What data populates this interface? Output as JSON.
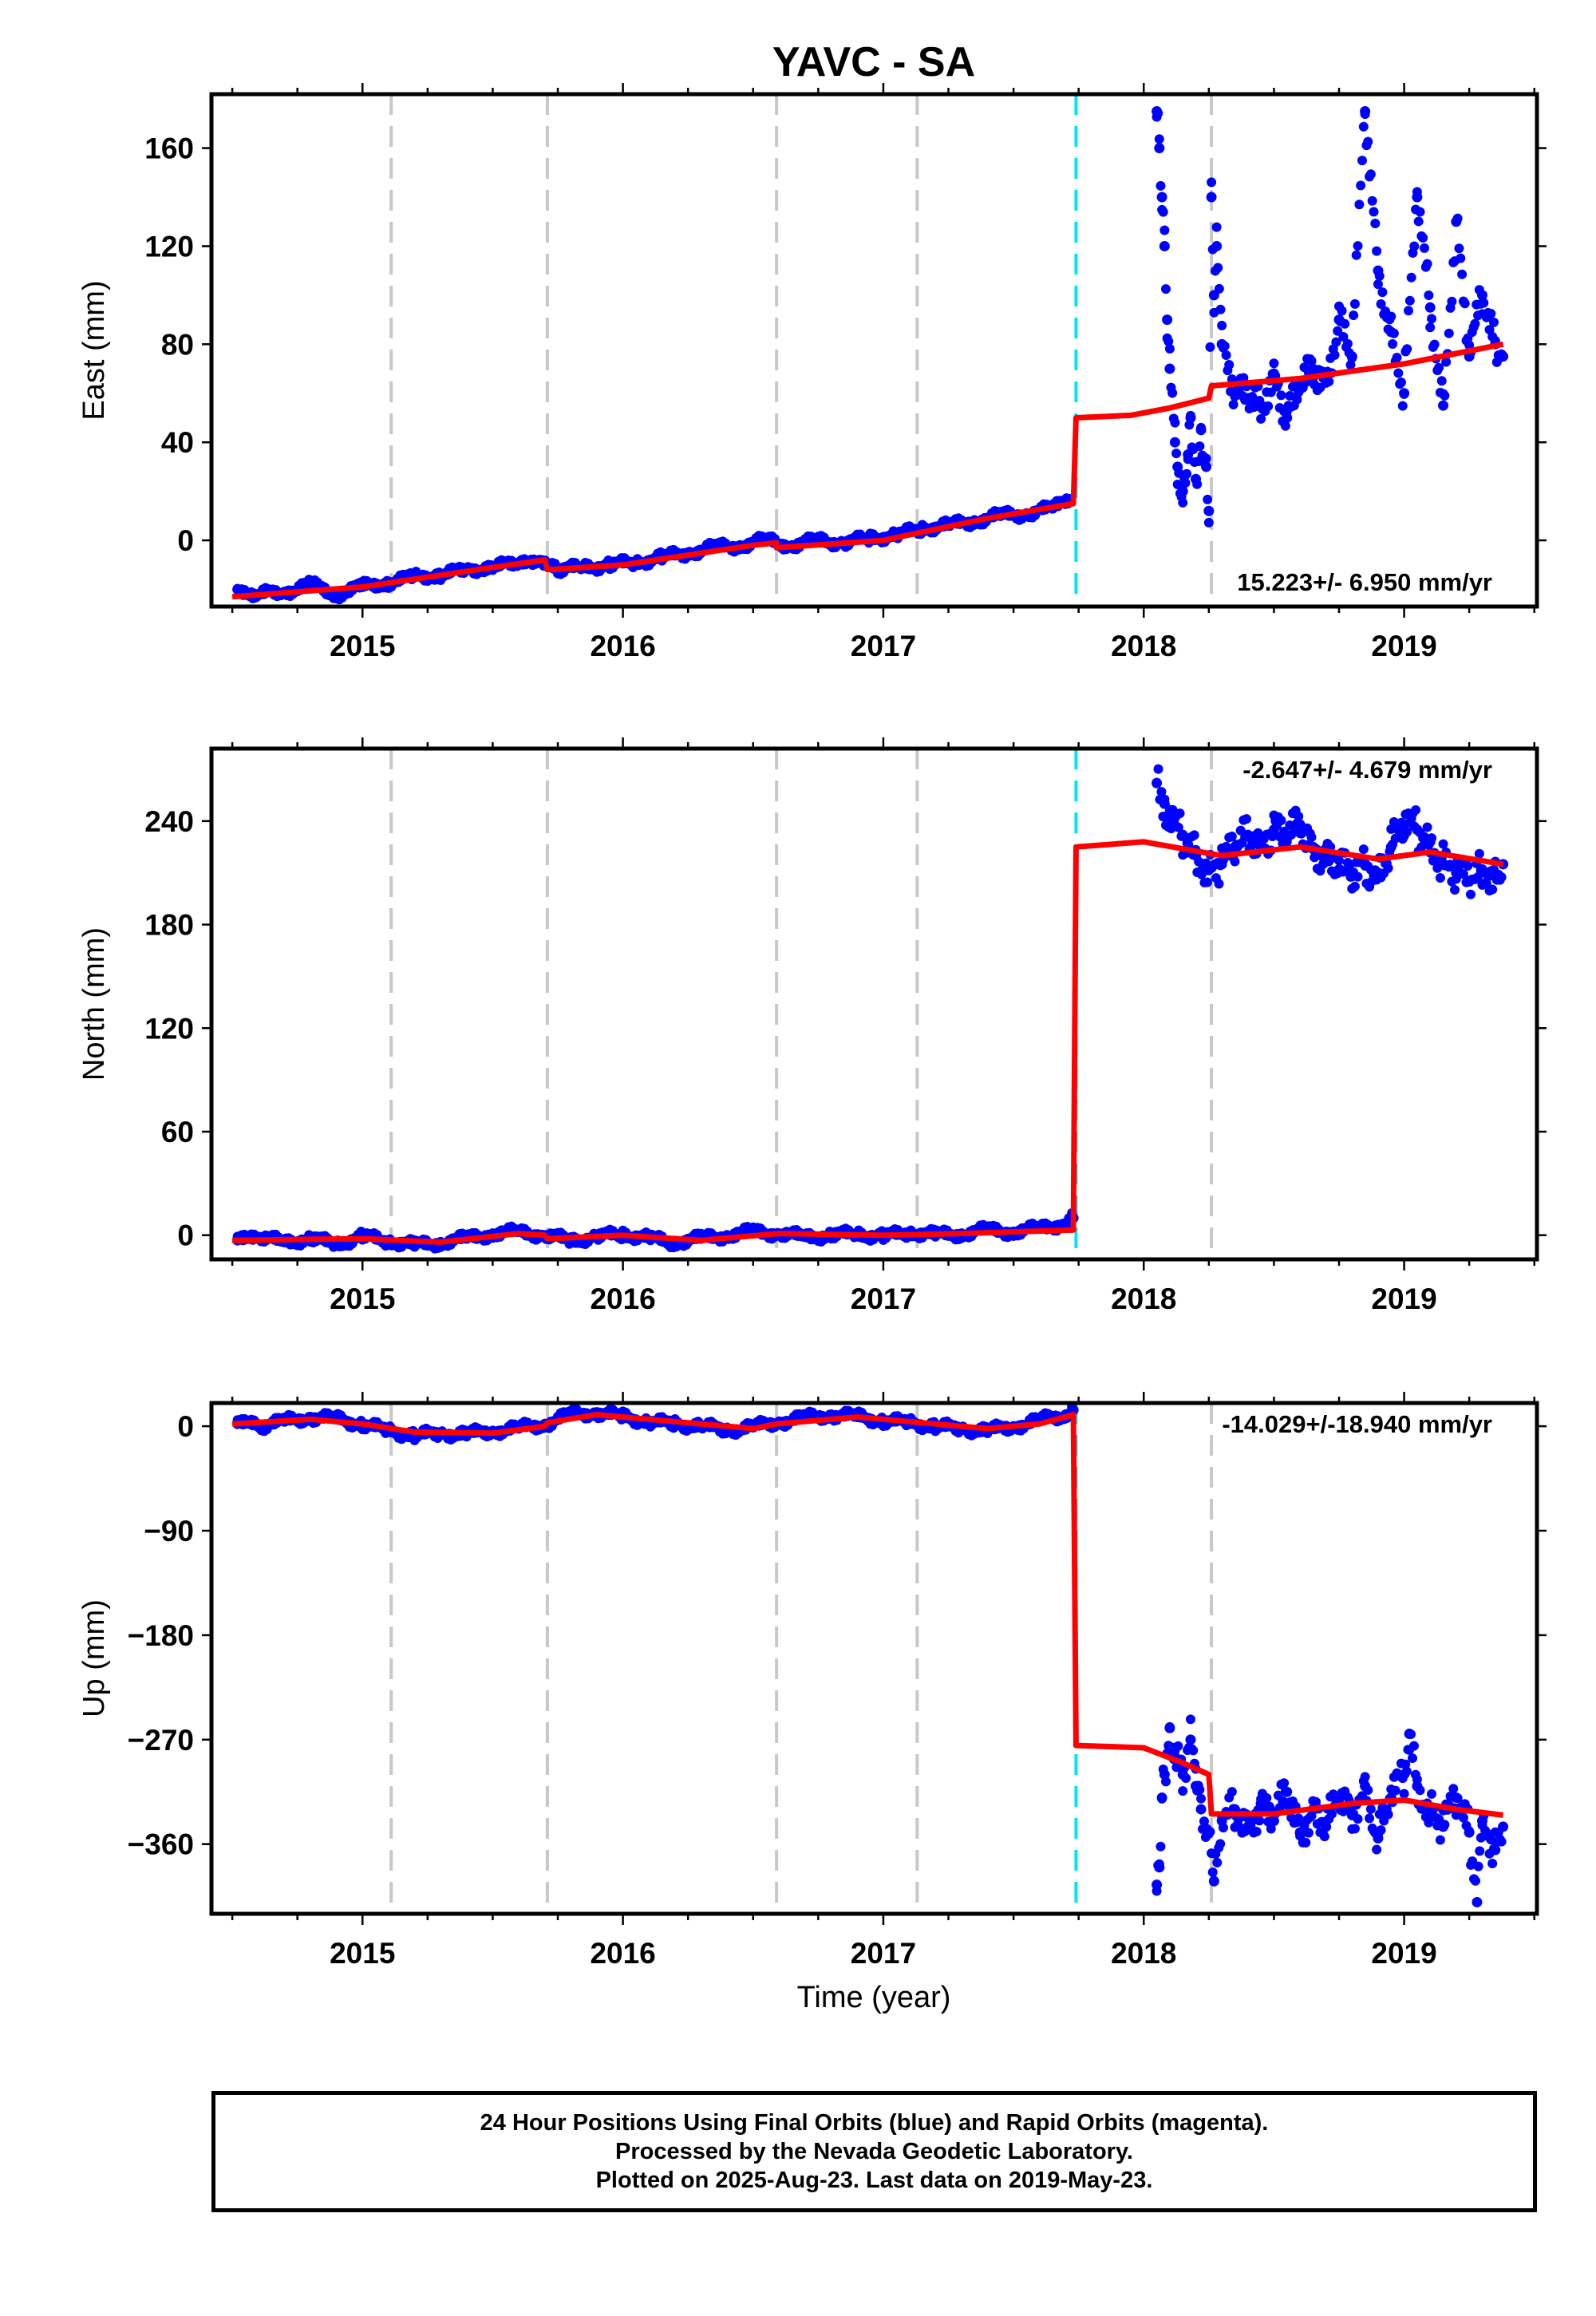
{
  "title": "YAVC - SA",
  "xlabel": "Time (year)",
  "colors": {
    "points": "#0000ff",
    "model": "#ff0000",
    "event_grey": "#c8c8c8",
    "event_cyan": "#00e5ee"
  },
  "footer": {
    "line1": "24 Hour Positions Using Final Orbits (blue) and Rapid Orbits (magenta).",
    "line2": "Processed by the Nevada Geodetic Laboratory.",
    "line3": "Plotted on 2025-Aug-23. Last data on 2019-May-23."
  },
  "chart_data": [
    {
      "type": "scatter",
      "panel": "east",
      "ylabel": "East (mm)",
      "xlim": [
        2014.42,
        2019.51
      ],
      "ylim": [
        -27,
        182
      ],
      "yticks": [
        0,
        40,
        80,
        120,
        160
      ],
      "xticks": [
        2015,
        2016,
        2017,
        2018,
        2019
      ],
      "rate_text": "15.223+/- 6.950 mm/yr",
      "event_lines_grey": [
        2015.11,
        2015.71,
        2016.59,
        2017.13,
        2018.26
      ],
      "event_lines_cyan": [
        2017.74
      ],
      "model": [
        [
          2014.5,
          -23
        ],
        [
          2015.0,
          -19
        ],
        [
          2015.5,
          -11
        ],
        [
          2015.7,
          -8
        ],
        [
          2015.71,
          -12
        ],
        [
          2016.0,
          -10
        ],
        [
          2016.5,
          -2
        ],
        [
          2016.59,
          -1
        ],
        [
          2016.59,
          -3
        ],
        [
          2017.0,
          0
        ],
        [
          2017.4,
          9
        ],
        [
          2017.73,
          15
        ],
        [
          2017.74,
          50
        ],
        [
          2017.95,
          51
        ],
        [
          2018.1,
          54
        ],
        [
          2018.25,
          58
        ],
        [
          2018.26,
          63
        ],
        [
          2018.6,
          66
        ],
        [
          2019.0,
          72
        ],
        [
          2019.38,
          80
        ]
      ],
      "points": [
        [
          2014.52,
          -20
        ],
        [
          2014.6,
          -22
        ],
        [
          2014.7,
          -21
        ],
        [
          2014.8,
          -18
        ],
        [
          2014.9,
          -22
        ],
        [
          2015.0,
          -19
        ],
        [
          2015.1,
          -17
        ],
        [
          2015.2,
          -15
        ],
        [
          2015.3,
          -14
        ],
        [
          2015.4,
          -12
        ],
        [
          2015.5,
          -11
        ],
        [
          2015.6,
          -9
        ],
        [
          2015.68,
          -8
        ],
        [
          2015.75,
          -12
        ],
        [
          2015.85,
          -11
        ],
        [
          2015.95,
          -10
        ],
        [
          2016.05,
          -9
        ],
        [
          2016.15,
          -7
        ],
        [
          2016.25,
          -5
        ],
        [
          2016.35,
          -3
        ],
        [
          2016.45,
          -2
        ],
        [
          2016.55,
          0
        ],
        [
          2016.65,
          -2
        ],
        [
          2016.75,
          0
        ],
        [
          2016.85,
          -1
        ],
        [
          2016.95,
          1
        ],
        [
          2017.05,
          2
        ],
        [
          2017.15,
          5
        ],
        [
          2017.25,
          6
        ],
        [
          2017.35,
          8
        ],
        [
          2017.45,
          10
        ],
        [
          2017.55,
          11
        ],
        [
          2017.65,
          13
        ],
        [
          2017.72,
          16
        ],
        [
          2018.05,
          175
        ],
        [
          2018.06,
          160
        ],
        [
          2018.07,
          140
        ],
        [
          2018.08,
          120
        ],
        [
          2018.09,
          90
        ],
        [
          2018.1,
          70
        ],
        [
          2018.12,
          40
        ],
        [
          2018.13,
          30
        ],
        [
          2018.15,
          20
        ],
        [
          2018.17,
          35
        ],
        [
          2018.18,
          50
        ],
        [
          2018.2,
          25
        ],
        [
          2018.22,
          45
        ],
        [
          2018.24,
          30
        ],
        [
          2018.25,
          12
        ],
        [
          2018.26,
          140
        ],
        [
          2018.27,
          100
        ],
        [
          2018.28,
          120
        ],
        [
          2018.3,
          80
        ],
        [
          2018.35,
          60
        ],
        [
          2018.4,
          58
        ],
        [
          2018.45,
          55
        ],
        [
          2018.5,
          68
        ],
        [
          2018.55,
          50
        ],
        [
          2018.6,
          62
        ],
        [
          2018.65,
          70
        ],
        [
          2018.7,
          65
        ],
        [
          2018.75,
          90
        ],
        [
          2018.8,
          75
        ],
        [
          2018.85,
          175
        ],
        [
          2018.9,
          110
        ],
        [
          2018.95,
          85
        ],
        [
          2019.0,
          60
        ],
        [
          2019.05,
          140
        ],
        [
          2019.1,
          95
        ],
        [
          2019.15,
          55
        ],
        [
          2019.2,
          130
        ],
        [
          2019.25,
          75
        ],
        [
          2019.3,
          100
        ],
        [
          2019.35,
          80
        ],
        [
          2019.38,
          75
        ]
      ]
    },
    {
      "type": "scatter",
      "panel": "north",
      "ylabel": "North (mm)",
      "xlim": [
        2014.42,
        2019.51
      ],
      "ylim": [
        -14,
        282
      ],
      "yticks": [
        0,
        60,
        120,
        180,
        240
      ],
      "xticks": [
        2015,
        2016,
        2017,
        2018,
        2019
      ],
      "rate_text": "-2.647+/- 4.679 mm/yr",
      "event_lines_grey": [
        2015.11,
        2015.71,
        2016.59,
        2017.13,
        2018.26
      ],
      "event_lines_cyan": [
        2017.74
      ],
      "model": [
        [
          2014.5,
          -3
        ],
        [
          2015.0,
          -2
        ],
        [
          2015.3,
          -4
        ],
        [
          2015.6,
          1
        ],
        [
          2015.7,
          0
        ],
        [
          2015.71,
          -2
        ],
        [
          2016.0,
          0
        ],
        [
          2016.3,
          -3
        ],
        [
          2016.6,
          1
        ],
        [
          2017.0,
          0
        ],
        [
          2017.3,
          1
        ],
        [
          2017.73,
          3
        ],
        [
          2017.74,
          225
        ],
        [
          2018.0,
          228
        ],
        [
          2018.3,
          220
        ],
        [
          2018.6,
          225
        ],
        [
          2018.9,
          218
        ],
        [
          2019.1,
          222
        ],
        [
          2019.38,
          215
        ]
      ],
      "points": [
        [
          2014.52,
          -3
        ],
        [
          2014.6,
          -1
        ],
        [
          2014.7,
          -4
        ],
        [
          2014.8,
          -2
        ],
        [
          2014.9,
          -5
        ],
        [
          2015.0,
          -1
        ],
        [
          2015.1,
          -3
        ],
        [
          2015.2,
          -6
        ],
        [
          2015.3,
          -4
        ],
        [
          2015.4,
          -2
        ],
        [
          2015.5,
          1
        ],
        [
          2015.6,
          2
        ],
        [
          2015.7,
          0
        ],
        [
          2015.8,
          -3
        ],
        [
          2015.9,
          -1
        ],
        [
          2016.0,
          1
        ],
        [
          2016.1,
          -2
        ],
        [
          2016.2,
          -4
        ],
        [
          2016.3,
          -2
        ],
        [
          2016.4,
          0
        ],
        [
          2016.5,
          2
        ],
        [
          2016.6,
          1
        ],
        [
          2016.7,
          -1
        ],
        [
          2016.8,
          0
        ],
        [
          2016.9,
          1
        ],
        [
          2017.0,
          -1
        ],
        [
          2017.1,
          2
        ],
        [
          2017.2,
          0
        ],
        [
          2017.3,
          1
        ],
        [
          2017.4,
          3
        ],
        [
          2017.5,
          2
        ],
        [
          2017.6,
          4
        ],
        [
          2017.7,
          7
        ],
        [
          2017.73,
          10
        ],
        [
          2018.05,
          262
        ],
        [
          2018.08,
          250
        ],
        [
          2018.1,
          240
        ],
        [
          2018.15,
          232
        ],
        [
          2018.2,
          220
        ],
        [
          2018.25,
          212
        ],
        [
          2018.3,
          215
        ],
        [
          2018.35,
          225
        ],
        [
          2018.4,
          232
        ],
        [
          2018.45,
          228
        ],
        [
          2018.5,
          235
        ],
        [
          2018.55,
          230
        ],
        [
          2018.6,
          238
        ],
        [
          2018.65,
          225
        ],
        [
          2018.7,
          220
        ],
        [
          2018.75,
          212
        ],
        [
          2018.8,
          208
        ],
        [
          2018.85,
          215
        ],
        [
          2018.9,
          210
        ],
        [
          2018.95,
          225
        ],
        [
          2019.0,
          238
        ],
        [
          2019.05,
          235
        ],
        [
          2019.1,
          228
        ],
        [
          2019.15,
          215
        ],
        [
          2019.2,
          210
        ],
        [
          2019.25,
          205
        ],
        [
          2019.3,
          212
        ],
        [
          2019.35,
          208
        ],
        [
          2019.38,
          215
        ]
      ]
    },
    {
      "type": "scatter",
      "panel": "up",
      "ylabel": "Up (mm)",
      "xlim": [
        2014.42,
        2019.51
      ],
      "ylim": [
        -420,
        20
      ],
      "yticks": [
        0,
        -90,
        -180,
        -270,
        -360
      ],
      "ytick_labels": [
        "0",
        "−90",
        "−180",
        "−270",
        "−360"
      ],
      "xticks": [
        2015,
        2016,
        2017,
        2018,
        2019
      ],
      "rate_text": "-14.029+/-18.940 mm/yr",
      "event_lines_grey": [
        2015.11,
        2015.71,
        2016.59,
        2017.13,
        2018.26
      ],
      "event_lines_cyan": [
        2017.74
      ],
      "model": [
        [
          2014.5,
          2
        ],
        [
          2014.8,
          6
        ],
        [
          2015.0,
          2
        ],
        [
          2015.2,
          -5
        ],
        [
          2015.5,
          -6
        ],
        [
          2015.7,
          0
        ],
        [
          2015.71,
          3
        ],
        [
          2015.9,
          10
        ],
        [
          2016.2,
          4
        ],
        [
          2016.5,
          -2
        ],
        [
          2016.59,
          2
        ],
        [
          2016.9,
          8
        ],
        [
          2017.1,
          4
        ],
        [
          2017.4,
          -2
        ],
        [
          2017.6,
          2
        ],
        [
          2017.73,
          10
        ],
        [
          2017.74,
          -275
        ],
        [
          2018.0,
          -277
        ],
        [
          2018.15,
          -290
        ],
        [
          2018.25,
          -300
        ],
        [
          2018.26,
          -334
        ],
        [
          2018.5,
          -334
        ],
        [
          2018.8,
          -325
        ],
        [
          2019.0,
          -322
        ],
        [
          2019.2,
          -330
        ],
        [
          2019.38,
          -335
        ]
      ],
      "points": [
        [
          2014.52,
          2
        ],
        [
          2014.6,
          0
        ],
        [
          2014.7,
          4
        ],
        [
          2014.8,
          8
        ],
        [
          2014.9,
          6
        ],
        [
          2015.0,
          2
        ],
        [
          2015.1,
          -4
        ],
        [
          2015.2,
          -8
        ],
        [
          2015.3,
          -6
        ],
        [
          2015.4,
          -7
        ],
        [
          2015.5,
          -4
        ],
        [
          2015.6,
          -2
        ],
        [
          2015.7,
          2
        ],
        [
          2015.8,
          10
        ],
        [
          2015.9,
          12
        ],
        [
          2016.0,
          8
        ],
        [
          2016.1,
          4
        ],
        [
          2016.2,
          2
        ],
        [
          2016.3,
          0
        ],
        [
          2016.4,
          -3
        ],
        [
          2016.5,
          -1
        ],
        [
          2016.6,
          4
        ],
        [
          2016.7,
          7
        ],
        [
          2016.8,
          10
        ],
        [
          2016.9,
          8
        ],
        [
          2017.0,
          5
        ],
        [
          2017.1,
          3
        ],
        [
          2017.2,
          0
        ],
        [
          2017.3,
          -2
        ],
        [
          2017.4,
          -4
        ],
        [
          2017.5,
          0
        ],
        [
          2017.6,
          5
        ],
        [
          2017.7,
          10
        ],
        [
          2017.73,
          14
        ],
        [
          2018.05,
          -395
        ],
        [
          2018.06,
          -380
        ],
        [
          2018.07,
          -320
        ],
        [
          2018.08,
          -300
        ],
        [
          2018.1,
          -260
        ],
        [
          2018.12,
          -285
        ],
        [
          2018.15,
          -300
        ],
        [
          2018.18,
          -270
        ],
        [
          2018.2,
          -310
        ],
        [
          2018.22,
          -330
        ],
        [
          2018.25,
          -350
        ],
        [
          2018.27,
          -392
        ],
        [
          2018.3,
          -340
        ],
        [
          2018.35,
          -330
        ],
        [
          2018.4,
          -345
        ],
        [
          2018.45,
          -325
        ],
        [
          2018.5,
          -340
        ],
        [
          2018.55,
          -315
        ],
        [
          2018.6,
          -350
        ],
        [
          2018.65,
          -330
        ],
        [
          2018.7,
          -345
        ],
        [
          2018.75,
          -320
        ],
        [
          2018.8,
          -335
        ],
        [
          2018.85,
          -310
        ],
        [
          2018.9,
          -355
        ],
        [
          2018.95,
          -320
        ],
        [
          2019.0,
          -300
        ],
        [
          2019.02,
          -265
        ],
        [
          2019.05,
          -310
        ],
        [
          2019.1,
          -330
        ],
        [
          2019.15,
          -345
        ],
        [
          2019.2,
          -320
        ],
        [
          2019.25,
          -350
        ],
        [
          2019.28,
          -410
        ],
        [
          2019.3,
          -340
        ],
        [
          2019.35,
          -365
        ],
        [
          2019.38,
          -345
        ]
      ]
    }
  ]
}
